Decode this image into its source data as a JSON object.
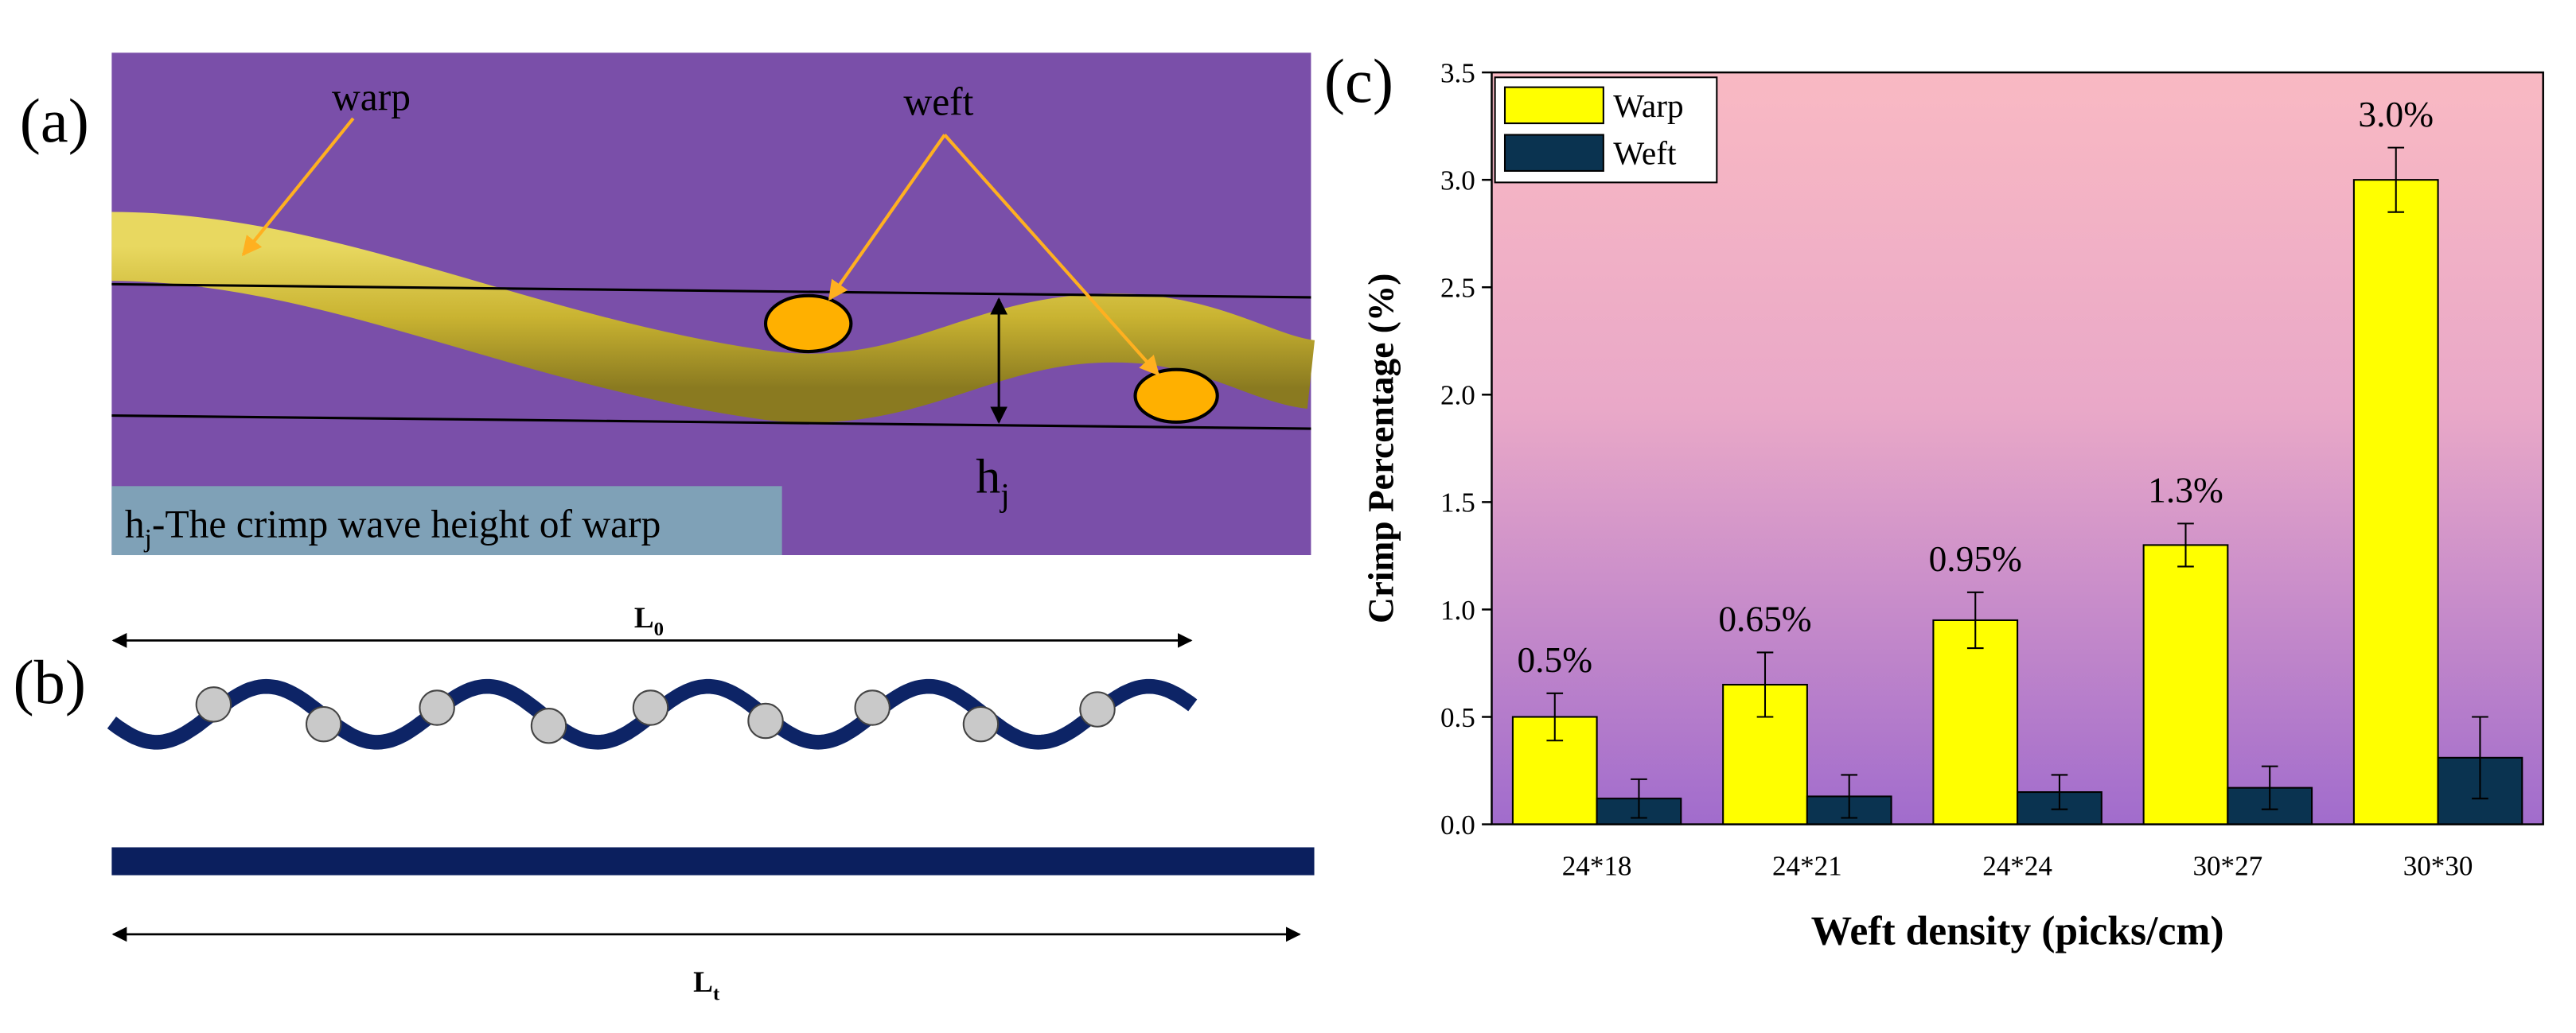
{
  "panel_a": {
    "label": "(a)",
    "warp": "warp",
    "weft": "weft",
    "height_symbol": "h",
    "height_subscript": "j",
    "caption_symbol": "h",
    "caption_subscript": "j",
    "caption_text": "-The crimp wave height of warp"
  },
  "panel_b": {
    "label": "(b)",
    "l0_symbol": "L",
    "l0_subscript": "0",
    "lt_symbol": "L",
    "lt_subscript": "t"
  },
  "chart_label": "(c)",
  "chart_data": {
    "type": "bar",
    "x_label": "Weft density (picks/cm)",
    "y_label": "Crimp Percentage (%)",
    "categories": [
      "24*18",
      "24*21",
      "24*24",
      "30*27",
      "30*30"
    ],
    "series": [
      {
        "name": "Warp",
        "color": "#ffff00",
        "values": [
          0.5,
          0.65,
          0.95,
          1.3,
          3.0
        ],
        "errors": [
          0.11,
          0.15,
          0.13,
          0.1,
          0.15
        ],
        "value_labels": [
          "0.5%",
          "0.65%",
          "0.95%",
          "1.3%",
          "3.0%"
        ]
      },
      {
        "name": "Weft",
        "color": "#0a3350",
        "values": [
          0.12,
          0.13,
          0.15,
          0.17,
          0.31
        ],
        "errors": [
          0.09,
          0.1,
          0.08,
          0.1,
          0.19
        ]
      }
    ],
    "ylim": [
      0,
      3.5
    ],
    "yticks": [
      {
        "value": 0,
        "label": "0.0"
      },
      0.5,
      {
        "value": 1,
        "label": "1.0"
      },
      1.5,
      {
        "value": 2,
        "label": "2.0"
      },
      2.5,
      {
        "value": 3,
        "label": "3.0"
      },
      3.5
    ],
    "legend": "top-left"
  }
}
